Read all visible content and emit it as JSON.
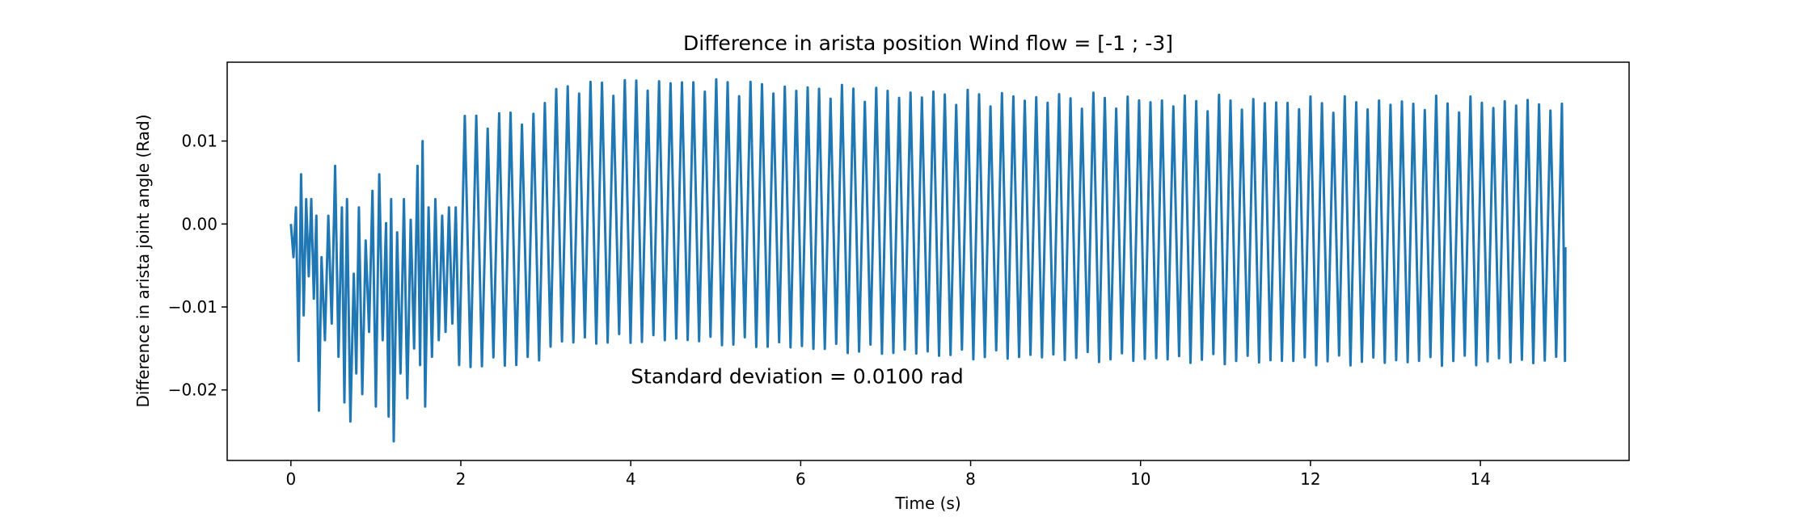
{
  "chart_data": {
    "type": "line",
    "title": "Difference in arista position Wind flow = [-1 ; -3]",
    "xlabel": "Time (s)",
    "ylabel": "Difference in arista joint angle (Rad)",
    "xlim": [
      -0.75,
      15.75
    ],
    "ylim": [
      -0.0285,
      0.0195
    ],
    "xticks": [
      0,
      2,
      4,
      6,
      8,
      10,
      12,
      14
    ],
    "xtick_labels": [
      "0",
      "2",
      "4",
      "6",
      "8",
      "10",
      "12",
      "14"
    ],
    "yticks": [
      0.01,
      0.0,
      -0.01,
      -0.02
    ],
    "ytick_labels": [
      "0.01",
      "0.00",
      "−0.01",
      "−0.02"
    ],
    "grid": false,
    "annotation": {
      "text": "Standard deviation = 0.0100 rad",
      "x": 4.0,
      "y": -0.0192
    },
    "series": [
      {
        "color": "#1f77b4",
        "x_start": 0.0,
        "x_end": 15.0,
        "irregular_segment": {
          "x": [
            0.0,
            0.03,
            0.06,
            0.09,
            0.12,
            0.15,
            0.18,
            0.21,
            0.24,
            0.27,
            0.3,
            0.33,
            0.36,
            0.4,
            0.44,
            0.48,
            0.52,
            0.56,
            0.6,
            0.63,
            0.66,
            0.7,
            0.74,
            0.77,
            0.8,
            0.84,
            0.88,
            0.92,
            0.96,
            1.0,
            1.04,
            1.08,
            1.12,
            1.15,
            1.18,
            1.21,
            1.25,
            1.29,
            1.33,
            1.37,
            1.41,
            1.45,
            1.49,
            1.52,
            1.55,
            1.58,
            1.62,
            1.66,
            1.7,
            1.74,
            1.78,
            1.82,
            1.86,
            1.9,
            1.94,
            1.98
          ],
          "y": [
            0.0,
            -0.004,
            0.002,
            -0.0165,
            0.006,
            -0.011,
            0.003,
            -0.0063,
            0.003,
            -0.009,
            0.001,
            -0.0225,
            -0.004,
            -0.014,
            0.001,
            -0.012,
            0.007,
            -0.016,
            0.002,
            -0.0215,
            0.003,
            -0.0238,
            -0.006,
            -0.018,
            0.002,
            -0.0205,
            -0.002,
            -0.013,
            0.004,
            -0.022,
            0.006,
            -0.014,
            0.0001,
            -0.0232,
            0.003,
            -0.0262,
            -0.001,
            -0.018,
            0.003,
            -0.021,
            0.0005,
            -0.015,
            0.007,
            -0.017,
            0.01,
            -0.022,
            0.002,
            -0.016,
            0.003,
            -0.014,
            0.001,
            -0.013,
            0.002,
            -0.012,
            0.002,
            -0.017
          ]
        },
        "oscillation": {
          "period_s": 0.1345,
          "start_s": 2.0,
          "envelope": [
            {
              "t": 2.0,
              "max": 0.0125,
              "min": -0.017
            },
            {
              "t": 2.9,
              "max": 0.013,
              "min": -0.0165
            },
            {
              "t": 3.1,
              "max": 0.0163,
              "min": -0.0142
            },
            {
              "t": 4.5,
              "max": 0.017,
              "min": -0.0138
            },
            {
              "t": 6.0,
              "max": 0.0162,
              "min": -0.0148
            },
            {
              "t": 8.0,
              "max": 0.0153,
              "min": -0.0158
            },
            {
              "t": 10.0,
              "max": 0.0148,
              "min": -0.0162
            },
            {
              "t": 12.0,
              "max": 0.0145,
              "min": -0.0165
            },
            {
              "t": 14.9,
              "max": 0.0145,
              "min": -0.0165
            }
          ],
          "final_value": -0.0028
        }
      }
    ]
  }
}
